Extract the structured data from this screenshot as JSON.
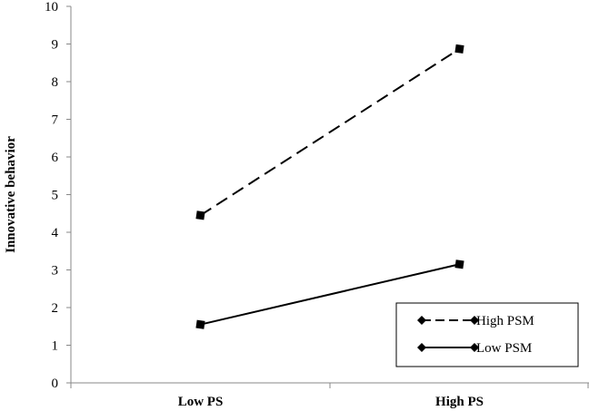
{
  "chart_data": {
    "type": "line",
    "categories": [
      "Low PS",
      "High PS"
    ],
    "series": [
      {
        "name": "High PSM",
        "values": [
          4.45,
          8.87
        ],
        "style": "dashed"
      },
      {
        "name": "Low PSM",
        "values": [
          1.55,
          3.15
        ],
        "style": "solid"
      }
    ],
    "xlabel": "",
    "ylabel": "Innovative behavior",
    "ylim": [
      0,
      10
    ],
    "yticks": [
      0,
      1,
      2,
      3,
      4,
      5,
      6,
      7,
      8,
      9,
      10
    ],
    "grid": false,
    "legend_position": "bottom-right",
    "colors": {
      "line": "#000000",
      "marker": "#000000"
    }
  }
}
